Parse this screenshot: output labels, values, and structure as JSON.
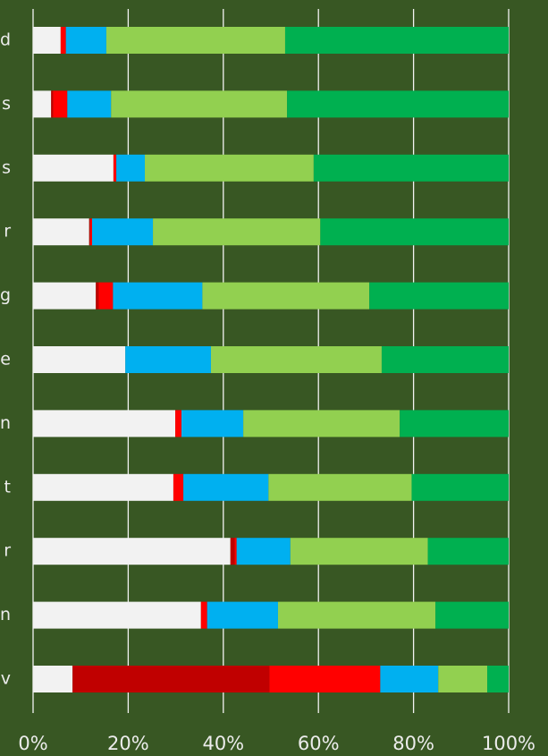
{
  "chart_data": {
    "type": "stacked_bar_horizontal",
    "categories": [
      "d",
      "s",
      "s",
      "r",
      "g",
      "e",
      "n",
      "t",
      "r",
      "n",
      "v"
    ],
    "series": [
      {
        "color": "#f2f2f2",
        "values": [
          5.8,
          3.8,
          16.9,
          11.8,
          13.2,
          19.4,
          29.9,
          29.5,
          41.5,
          35.3,
          8.3
        ]
      },
      {
        "color": "#c00000",
        "values": [
          0,
          0.4,
          0,
          0.2,
          0.6,
          0,
          0,
          0,
          0.9,
          0,
          41.4
        ]
      },
      {
        "color": "#ff0000",
        "values": [
          1.1,
          3.0,
          0.6,
          0.4,
          3.0,
          0,
          1.3,
          2.1,
          0.4,
          1.3,
          23.3
        ]
      },
      {
        "color": "#00b0f0",
        "values": [
          8.5,
          9.2,
          6.0,
          12.8,
          18.8,
          18.0,
          13.0,
          17.9,
          11.3,
          14.9,
          12.2
        ]
      },
      {
        "color": "#92d050",
        "values": [
          37.6,
          37.0,
          35.5,
          35.2,
          35.1,
          35.9,
          32.9,
          30.1,
          28.9,
          33.1,
          10.3
        ]
      },
      {
        "color": "#00b050",
        "values": [
          47.0,
          46.6,
          41.0,
          39.6,
          29.3,
          26.7,
          22.9,
          20.4,
          17.0,
          15.4,
          4.5
        ]
      }
    ],
    "xlim": [
      0,
      100
    ],
    "xticks": [
      {
        "value": 0,
        "label": "0%"
      },
      {
        "value": 20,
        "label": "20%"
      },
      {
        "value": 40,
        "label": "40%"
      },
      {
        "value": 60,
        "label": "60%"
      },
      {
        "value": 80,
        "label": "80%"
      },
      {
        "value": 100,
        "label": "100%"
      }
    ],
    "grid": true
  }
}
